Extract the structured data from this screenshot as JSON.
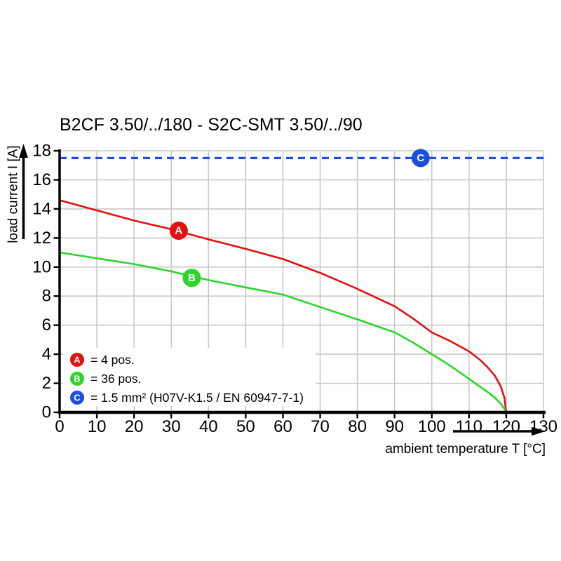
{
  "title": "B2CF 3.50/../180 - S2C-SMT 3.50/../90",
  "axes": {
    "x_label": "ambient temperature T [°C]",
    "y_label": "load current I [A]"
  },
  "legend": {
    "items": [
      {
        "marker": "A",
        "label": "= 4 pos."
      },
      {
        "marker": "B",
        "label": "= 36 pos."
      },
      {
        "marker": "C",
        "label": "= 1.5 mm² (H07V-K1.5 / EN 60947-7-1)"
      }
    ]
  },
  "colors": {
    "series_a": "#e31010",
    "series_b": "#2bd52b",
    "series_c": "#1b4fdd",
    "grid": "#c9c9c9",
    "axis": "#000000",
    "background": "#ffffff"
  },
  "chart_data": {
    "type": "line",
    "title": "B2CF 3.50/../180 - S2C-SMT 3.50/../90",
    "xlabel": "ambient temperature T [°C]",
    "ylabel": "load current I [A]",
    "xlim": [
      0,
      130
    ],
    "ylim": [
      0,
      18
    ],
    "x_ticks": [
      0,
      10,
      20,
      30,
      40,
      50,
      60,
      70,
      80,
      90,
      100,
      110,
      120,
      130
    ],
    "y_ticks": [
      0,
      2,
      4,
      6,
      8,
      10,
      12,
      14,
      16,
      18
    ],
    "grid": "on",
    "legend_position": "lower-left",
    "series": [
      {
        "name": "A",
        "label": "= 4 pos.",
        "color": "#e31010",
        "line_style": "solid",
        "marker": {
          "letter": "A",
          "x": 32,
          "y": 12.5
        },
        "points": [
          [
            0,
            14.6
          ],
          [
            10,
            13.9
          ],
          [
            20,
            13.2
          ],
          [
            30,
            12.6
          ],
          [
            40,
            11.9
          ],
          [
            50,
            11.25
          ],
          [
            60,
            10.55
          ],
          [
            70,
            9.6
          ],
          [
            80,
            8.5
          ],
          [
            90,
            7.3
          ],
          [
            95,
            6.45
          ],
          [
            100,
            5.5
          ],
          [
            105,
            4.9
          ],
          [
            110,
            4.2
          ],
          [
            113,
            3.6
          ],
          [
            115,
            3.1
          ],
          [
            117,
            2.5
          ],
          [
            118.5,
            1.8
          ],
          [
            119.5,
            1.0
          ],
          [
            120,
            0
          ]
        ]
      },
      {
        "name": "B",
        "label": "= 36 pos.",
        "color": "#2bd52b",
        "line_style": "solid",
        "marker": {
          "letter": "B",
          "x": 35.5,
          "y": 9.25
        },
        "points": [
          [
            0,
            11.0
          ],
          [
            10,
            10.6
          ],
          [
            20,
            10.2
          ],
          [
            30,
            9.7
          ],
          [
            40,
            9.1
          ],
          [
            50,
            8.6
          ],
          [
            60,
            8.1
          ],
          [
            70,
            7.25
          ],
          [
            80,
            6.4
          ],
          [
            90,
            5.5
          ],
          [
            95,
            4.8
          ],
          [
            100,
            4.0
          ],
          [
            105,
            3.2
          ],
          [
            110,
            2.3
          ],
          [
            113,
            1.75
          ],
          [
            115,
            1.4
          ],
          [
            117,
            1.0
          ],
          [
            118.5,
            0.6
          ],
          [
            119.5,
            0.25
          ],
          [
            120,
            0
          ]
        ]
      },
      {
        "name": "C",
        "label": "= 1.5 mm² (H07V-K1.5 / EN 60947-7-1)",
        "color": "#1b4fdd",
        "line_style": "dashed",
        "marker": {
          "letter": "C",
          "x": 97,
          "y": 17.5
        },
        "points": [
          [
            0,
            17.5
          ],
          [
            130,
            17.5
          ]
        ]
      }
    ]
  }
}
